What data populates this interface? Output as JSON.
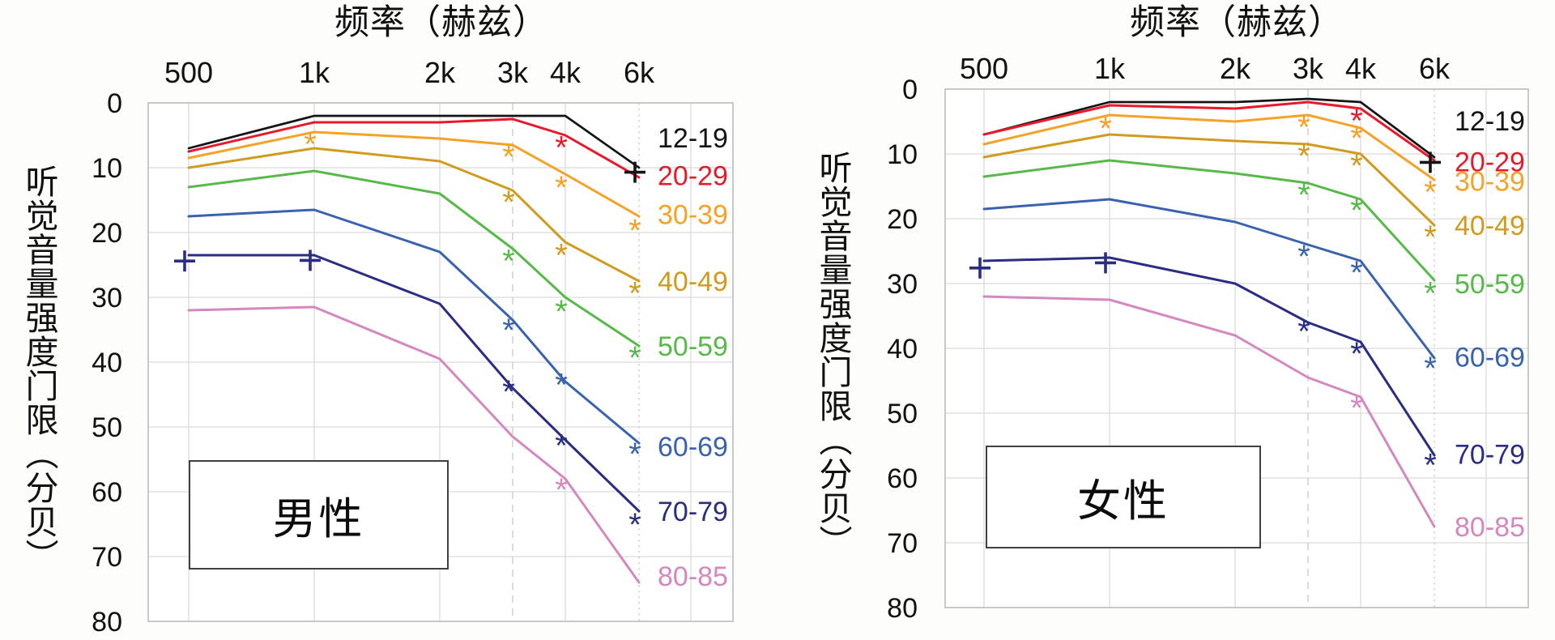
{
  "figure": {
    "description_labels": {
      "left_panel": "男性",
      "right_panel": "女性"
    }
  },
  "chart_data": [
    {
      "type": "line",
      "panel_label": "男性",
      "title": "频率（赫兹）",
      "xlabel": "频率（赫兹）",
      "ylabel": "听觉音量强度门限（分贝）",
      "x_axis_side": "top",
      "x_scale": "log",
      "x_categories": [
        "500",
        "1k",
        "2k",
        "3k",
        "4k",
        "6k"
      ],
      "y_ticks": [
        0,
        10,
        20,
        30,
        40,
        50,
        60,
        70,
        80
      ],
      "ylim": [
        0,
        80
      ],
      "y_inverted": true,
      "grid": true,
      "legend_position": "right-of-line-ends",
      "series": [
        {
          "name": "12-19",
          "color": "#141414",
          "values": [
            7,
            2,
            2,
            2,
            2,
            10
          ],
          "markers": [
            {
              "x": "6k",
              "symbol": "+",
              "value": 10.7
            }
          ]
        },
        {
          "name": "20-29",
          "color": "#e8192b",
          "values": [
            7.5,
            3,
            3,
            2.5,
            5,
            11.5
          ],
          "markers": [
            {
              "x": "4k",
              "symbol": "*",
              "value": 6.2
            }
          ]
        },
        {
          "name": "30-39",
          "color": "#f5a228",
          "values": [
            8.5,
            4.5,
            5.5,
            6.5,
            11,
            17.5
          ],
          "markers": [
            {
              "x": "1k",
              "symbol": "*",
              "value": 5.7
            },
            {
              "x": "3k",
              "symbol": "*",
              "value": 7.6
            },
            {
              "x": "4k",
              "symbol": "*",
              "value": 12.4
            },
            {
              "x": "6k",
              "symbol": "*",
              "value": 19
            }
          ]
        },
        {
          "name": "40-49",
          "color": "#d09c1f",
          "values": [
            10,
            7,
            9,
            13.5,
            21.5,
            27.5
          ],
          "markers": [
            {
              "x": "3k",
              "symbol": "*",
              "value": 14.6
            },
            {
              "x": "4k",
              "symbol": "*",
              "value": 22.8
            },
            {
              "x": "6k",
              "symbol": "*",
              "value": 28.7
            }
          ]
        },
        {
          "name": "50-59",
          "color": "#56b948",
          "values": [
            13,
            10.5,
            14,
            22.5,
            30,
            37.5
          ],
          "markers": [
            {
              "x": "3k",
              "symbol": "*",
              "value": 23.7
            },
            {
              "x": "4k",
              "symbol": "*",
              "value": 31.5
            },
            {
              "x": "6k",
              "symbol": "*",
              "value": 38.6
            }
          ]
        },
        {
          "name": "60-69",
          "color": "#3a63ae",
          "values": [
            17.5,
            16.5,
            23,
            33.5,
            43,
            52.5
          ],
          "markers": [
            {
              "x": "3k",
              "symbol": "*",
              "value": 34.4
            },
            {
              "x": "4k",
              "symbol": "*",
              "value": 42.8
            },
            {
              "x": "6k",
              "symbol": "*",
              "value": 53.5
            }
          ]
        },
        {
          "name": "70-79",
          "color": "#2a2d82",
          "values": [
            23.5,
            23.5,
            31,
            44,
            52,
            63
          ],
          "markers": [
            {
              "x": "500",
              "symbol": "+",
              "value": 24.4
            },
            {
              "x": "1k",
              "symbol": "+",
              "value": 24.3
            },
            {
              "x": "3k",
              "symbol": "*",
              "value": 43.9
            },
            {
              "x": "4k",
              "symbol": "*",
              "value": 52.2
            },
            {
              "x": "6k",
              "symbol": "*",
              "value": 64.4
            }
          ]
        },
        {
          "name": "80-85",
          "color": "#d587bf",
          "values": [
            32,
            31.5,
            39.5,
            51.5,
            58,
            74
          ],
          "markers": [
            {
              "x": "4k",
              "symbol": "*",
              "value": 59
            }
          ]
        }
      ]
    },
    {
      "type": "line",
      "panel_label": "女性",
      "title": "频率（赫兹）",
      "xlabel": "频率（赫兹）",
      "ylabel": "听觉音量强度门限（分贝）",
      "x_axis_side": "top",
      "x_scale": "log",
      "x_categories": [
        "500",
        "1k",
        "2k",
        "3k",
        "4k",
        "6k"
      ],
      "y_ticks": [
        0,
        10,
        20,
        30,
        40,
        50,
        60,
        70,
        80
      ],
      "ylim": [
        0,
        80
      ],
      "y_inverted": true,
      "grid": true,
      "legend_position": "right-of-line-ends",
      "series": [
        {
          "name": "12-19",
          "color": "#141414",
          "values": [
            7,
            2,
            2,
            1.5,
            2,
            10.5
          ],
          "markers": [
            {
              "x": "6k",
              "symbol": "+",
              "value": 11.3
            }
          ]
        },
        {
          "name": "20-29",
          "color": "#e8192b",
          "values": [
            7,
            2.5,
            3,
            2,
            3,
            11
          ],
          "markers": [
            {
              "x": "4k",
              "symbol": "*",
              "value": 4.2
            }
          ]
        },
        {
          "name": "30-39",
          "color": "#f5a228",
          "values": [
            8.5,
            4,
            5,
            4,
            6,
            14
          ],
          "markers": [
            {
              "x": "1k",
              "symbol": "*",
              "value": 5.4
            },
            {
              "x": "3k",
              "symbol": "*",
              "value": 5.2
            },
            {
              "x": "4k",
              "symbol": "*",
              "value": 6.9
            },
            {
              "x": "6k",
              "symbol": "*",
              "value": 15.2
            }
          ]
        },
        {
          "name": "40-49",
          "color": "#d09c1f",
          "values": [
            10.5,
            7,
            8,
            8.5,
            10,
            21
          ],
          "markers": [
            {
              "x": "3k",
              "symbol": "*",
              "value": 9.6
            },
            {
              "x": "4k",
              "symbol": "*",
              "value": 11.1
            },
            {
              "x": "6k",
              "symbol": "*",
              "value": 22.1
            }
          ]
        },
        {
          "name": "50-59",
          "color": "#56b948",
          "values": [
            13.5,
            11,
            13,
            14.5,
            17,
            29.5
          ],
          "markers": [
            {
              "x": "3k",
              "symbol": "*",
              "value": 15.6
            },
            {
              "x": "4k",
              "symbol": "*",
              "value": 18
            },
            {
              "x": "6k",
              "symbol": "*",
              "value": 30.8
            }
          ]
        },
        {
          "name": "60-69",
          "color": "#3a63ae",
          "values": [
            18.5,
            17,
            20.5,
            24,
            26.5,
            41.5
          ],
          "markers": [
            {
              "x": "3k",
              "symbol": "*",
              "value": 25.1
            },
            {
              "x": "4k",
              "symbol": "*",
              "value": 27.6
            },
            {
              "x": "6k",
              "symbol": "*",
              "value": 42.4
            }
          ]
        },
        {
          "name": "70-79",
          "color": "#2a2d82",
          "values": [
            26.5,
            26,
            30,
            36,
            39,
            56.5
          ],
          "markers": [
            {
              "x": "500",
              "symbol": "+",
              "value": 27.6
            },
            {
              "x": "1k",
              "symbol": "+",
              "value": 26.8
            },
            {
              "x": "3k",
              "symbol": "*",
              "value": 36.7
            },
            {
              "x": "4k",
              "symbol": "*",
              "value": 40.1
            },
            {
              "x": "6k",
              "symbol": "*",
              "value": 57.3
            }
          ]
        },
        {
          "name": "80-85",
          "color": "#d587bf",
          "values": [
            32,
            32.5,
            38,
            44.5,
            47.5,
            67.5
          ],
          "markers": [
            {
              "x": "4k",
              "symbol": "*",
              "value": 48.5
            }
          ]
        }
      ]
    }
  ],
  "style_colors": {
    "grid": "#dadada",
    "grid_dashed": "#c9c9c9",
    "border": "#bdbdbd",
    "plot_background": "#ffffff",
    "text": "#111111"
  }
}
